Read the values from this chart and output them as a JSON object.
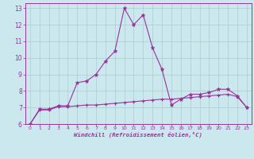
{
  "x": [
    0,
    1,
    2,
    3,
    4,
    5,
    6,
    7,
    8,
    9,
    10,
    11,
    12,
    13,
    14,
    15,
    16,
    17,
    18,
    19,
    20,
    21,
    22,
    23
  ],
  "line1_y": [
    6.0,
    6.9,
    6.9,
    7.1,
    7.1,
    8.5,
    8.6,
    9.0,
    9.8,
    10.4,
    13.0,
    12.0,
    12.6,
    10.6,
    9.3,
    7.15,
    7.5,
    7.8,
    7.8,
    7.9,
    8.1,
    8.1,
    7.7,
    7.0
  ],
  "line2_y": [
    6.0,
    6.85,
    6.85,
    7.05,
    7.05,
    7.1,
    7.15,
    7.15,
    7.2,
    7.25,
    7.3,
    7.35,
    7.4,
    7.45,
    7.5,
    7.5,
    7.55,
    7.6,
    7.65,
    7.7,
    7.75,
    7.8,
    7.65,
    7.0
  ],
  "line_color": "#993399",
  "bg_color": "#cce8ef",
  "grid_color": "#aacccc",
  "xlabel": "Windchill (Refroidissement éolien,°C)",
  "ylim": [
    6,
    13.3
  ],
  "xlim": [
    -0.5,
    23.5
  ],
  "yticks": [
    6,
    7,
    8,
    9,
    10,
    11,
    12,
    13
  ],
  "xticks": [
    0,
    1,
    2,
    3,
    4,
    5,
    6,
    7,
    8,
    9,
    10,
    11,
    12,
    13,
    14,
    15,
    16,
    17,
    18,
    19,
    20,
    21,
    22,
    23
  ]
}
